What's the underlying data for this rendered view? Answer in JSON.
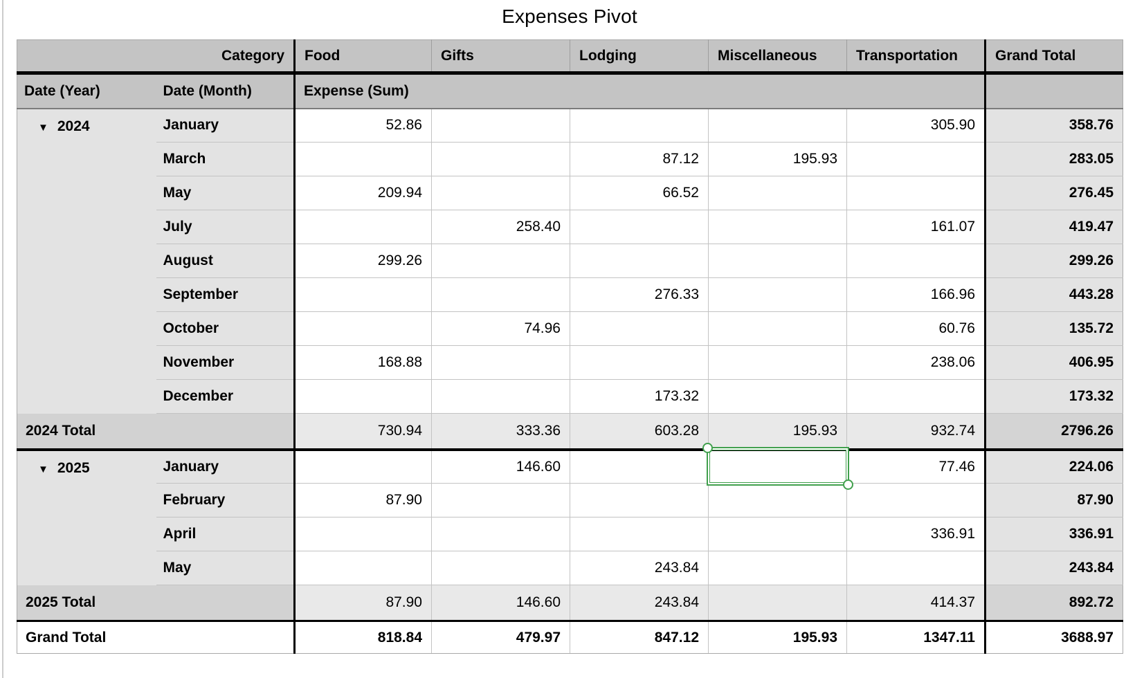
{
  "title": "Expenses Pivot",
  "columns": {
    "corner_label": "Category",
    "year_label": "Date (Year)",
    "month_label": "Date (Month)",
    "measure_label": "Expense (Sum)",
    "categories": [
      "Food",
      "Gifts",
      "Lodging",
      "Miscellaneous",
      "Transportation"
    ],
    "grand_total_label": "Grand Total"
  },
  "groups": [
    {
      "year": "2024",
      "disclosure_icon": "▼",
      "rows": [
        {
          "month": "January",
          "values": [
            "52.86",
            "",
            "",
            "",
            "305.90"
          ],
          "row_total": "358.76"
        },
        {
          "month": "March",
          "values": [
            "",
            "",
            "87.12",
            "195.93",
            ""
          ],
          "row_total": "283.05"
        },
        {
          "month": "May",
          "values": [
            "209.94",
            "",
            "66.52",
            "",
            ""
          ],
          "row_total": "276.45"
        },
        {
          "month": "July",
          "values": [
            "",
            "258.40",
            "",
            "",
            "161.07"
          ],
          "row_total": "419.47"
        },
        {
          "month": "August",
          "values": [
            "299.26",
            "",
            "",
            "",
            ""
          ],
          "row_total": "299.26"
        },
        {
          "month": "September",
          "values": [
            "",
            "",
            "276.33",
            "",
            "166.96"
          ],
          "row_total": "443.28"
        },
        {
          "month": "October",
          "values": [
            "",
            "74.96",
            "",
            "",
            "60.76"
          ],
          "row_total": "135.72"
        },
        {
          "month": "November",
          "values": [
            "168.88",
            "",
            "",
            "",
            "238.06"
          ],
          "row_total": "406.95"
        },
        {
          "month": "December",
          "values": [
            "",
            "",
            "173.32",
            "",
            ""
          ],
          "row_total": "173.32"
        }
      ],
      "total_label": "2024 Total",
      "total_values": [
        "730.94",
        "333.36",
        "603.28",
        "195.93",
        "932.74"
      ],
      "total_grand": "2796.26"
    },
    {
      "year": "2025",
      "disclosure_icon": "▼",
      "rows": [
        {
          "month": "January",
          "values": [
            "",
            "146.60",
            "",
            "",
            "77.46"
          ],
          "row_total": "224.06",
          "selected_col": 3
        },
        {
          "month": "February",
          "values": [
            "87.90",
            "",
            "",
            "",
            ""
          ],
          "row_total": "87.90"
        },
        {
          "month": "April",
          "values": [
            "",
            "",
            "",
            "",
            "336.91"
          ],
          "row_total": "336.91"
        },
        {
          "month": "May",
          "values": [
            "",
            "",
            "243.84",
            "",
            ""
          ],
          "row_total": "243.84"
        }
      ],
      "total_label": "2025 Total",
      "total_values": [
        "87.90",
        "146.60",
        "243.84",
        "",
        "414.37"
      ],
      "total_grand": "892.72"
    }
  ],
  "grand_total_row": {
    "label": "Grand Total",
    "values": [
      "818.84",
      "479.97",
      "847.12",
      "195.93",
      "1347.11"
    ],
    "total": "3688.97"
  },
  "selection": {
    "year": "2025",
    "month": "January",
    "category": "Miscellaneous",
    "value": ""
  },
  "colors": {
    "header_bg": "#c4c4c4",
    "row_header_bg": "#e3e3e3",
    "total_label_bg": "#d2d2d2",
    "total_value_bg": "#e9e9e9",
    "total_grand_bg": "#d4d4d4",
    "heavy_border": "#000000",
    "light_border": "#c3c3c3",
    "selection_green": "#41a04d"
  }
}
